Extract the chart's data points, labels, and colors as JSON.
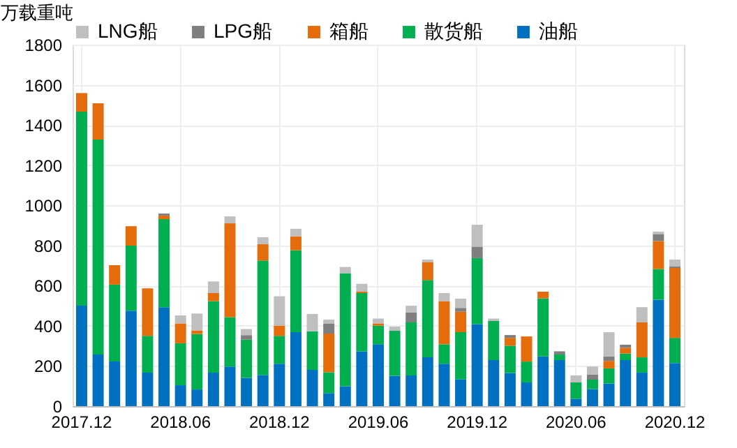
{
  "chart_data": {
    "type": "bar",
    "stacked": true,
    "ylabel": "万载重吨",
    "categories": [
      "2017.12",
      null,
      null,
      null,
      null,
      null,
      "2018.06",
      null,
      null,
      null,
      null,
      null,
      "2018.12",
      null,
      null,
      null,
      null,
      null,
      "2019.06",
      null,
      null,
      null,
      null,
      null,
      "2019.12",
      null,
      null,
      null,
      null,
      null,
      "2020.06",
      null,
      null,
      null,
      null,
      null,
      "2020.12"
    ],
    "series": [
      {
        "name": "油船",
        "color": "#0070c0",
        "values": [
          500,
          257,
          222,
          475,
          167,
          493,
          104,
          83,
          167,
          197,
          141,
          155,
          211,
          368,
          181,
          65,
          99,
          273,
          308,
          151,
          153,
          243,
          211,
          134,
          408,
          229,
          165,
          118,
          248,
          229,
          37,
          85,
          113,
          229,
          167,
          530,
          215
        ]
      },
      {
        "name": "散货船",
        "color": "#00b050",
        "values": [
          966,
          1070,
          383,
          324,
          183,
          438,
          209,
          276,
          356,
          246,
          190,
          570,
          139,
          408,
          192,
          104,
          563,
          290,
          93,
          224,
          264,
          385,
          97,
          234,
          329,
          195,
          136,
          104,
          289,
          28,
          81,
          47,
          75,
          33,
          76,
          153,
          125
        ]
      },
      {
        "name": "箱船",
        "color": "#e46c0a",
        "values": [
          93,
          181,
          97,
          97,
          236,
          18,
          99,
          18,
          40,
          467,
          0,
          81,
          51,
          69,
          0,
          192,
          0,
          7,
          11,
          0,
          0,
          90,
          215,
          102,
          0,
          0,
          39,
          125,
          33,
          0,
          0,
          0,
          37,
          28,
          174,
          139,
          348
        ]
      },
      {
        "name": "LPG船",
        "color": "#7f7f7f",
        "values": [
          0,
          0,
          0,
          0,
          0,
          10,
          0,
          0,
          0,
          0,
          23,
          0,
          0,
          0,
          0,
          49,
          0,
          0,
          0,
          0,
          49,
          0,
          0,
          19,
          57,
          0,
          14,
          0,
          0,
          16,
          0,
          26,
          23,
          16,
          0,
          35,
          7
        ]
      },
      {
        "name": "LNG船",
        "color": "#bfbfbf",
        "values": [
          0,
          0,
          0,
          0,
          0,
          0,
          40,
          84,
          58,
          35,
          30,
          35,
          146,
          38,
          86,
          21,
          31,
          39,
          24,
          21,
          34,
          12,
          40,
          46,
          109,
          12,
          0,
          0,
          0,
          0,
          35,
          39,
          120,
          0,
          76,
          12,
          35
        ]
      }
    ],
    "ylim": [
      0,
      1800
    ],
    "yticks": [
      0,
      200,
      400,
      600,
      800,
      1000,
      1200,
      1400,
      1600,
      1800
    ],
    "grid": true,
    "legend": "top"
  }
}
